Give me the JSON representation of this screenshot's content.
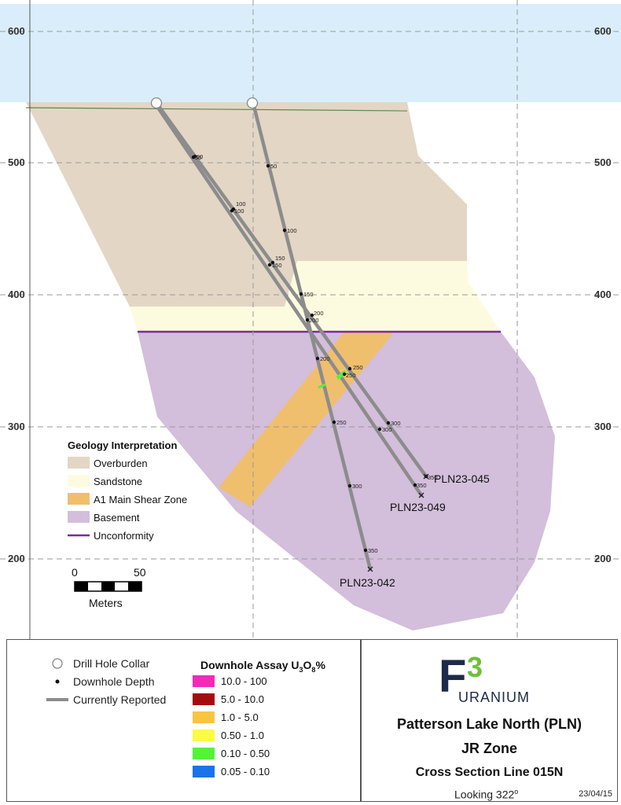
{
  "axis": {
    "left_ticks": [
      "600",
      "500",
      "400",
      "300",
      "200"
    ],
    "right_ticks": [
      "600",
      "500",
      "400",
      "300",
      "200"
    ]
  },
  "holes": [
    {
      "id": "PLN23-045",
      "depths": [
        "50",
        "100",
        "150",
        "200",
        "250",
        "300",
        "350"
      ]
    },
    {
      "id": "PLN23-049",
      "depths": [
        "50",
        "100",
        "150",
        "200",
        "250",
        "300",
        "350"
      ]
    },
    {
      "id": "PLN23-042",
      "depths": [
        "50",
        "100",
        "150",
        "200",
        "250",
        "300",
        "350"
      ]
    }
  ],
  "geology_legend": {
    "title": "Geology Interpretation",
    "items": [
      {
        "label": "Overburden",
        "color": "#e3d6c5"
      },
      {
        "label": "Sandstone",
        "color": "#fdfbdf"
      },
      {
        "label": "A1 Main Shear Zone",
        "color": "#efbf6e"
      },
      {
        "label": "Basement",
        "color": "#d3bedb"
      },
      {
        "label": "Unconformity",
        "color": "#7a2b9c"
      }
    ]
  },
  "scale_bar": {
    "start": "0",
    "end": "50",
    "unit": "Meters"
  },
  "symbol_legend": {
    "collar": "Drill Hole Collar",
    "depth": "Downhole Depth",
    "reported": "Currently Reported"
  },
  "assay_legend": {
    "title_prefix": "Downhole Assay U",
    "sub3": "3",
    "o": "O",
    "sub8": "8",
    "suffix": "%",
    "ranges": [
      {
        "label": "10.0 - 100",
        "color": "#f22ab8"
      },
      {
        "label": "5.0 - 10.0",
        "color": "#a40d0d"
      },
      {
        "label": "1.0 - 5.0",
        "color": "#f9c440"
      },
      {
        "label": "0.50 - 1.0",
        "color": "#fbfb45"
      },
      {
        "label": "0.10 - 0.50",
        "color": "#55f23a"
      },
      {
        "label": "0.05 - 0.10",
        "color": "#1a73e8"
      }
    ]
  },
  "title_block": {
    "logo_letters": "F",
    "logo_num": "3",
    "brand": "URANIUM",
    "line1": "Patterson Lake North (PLN)",
    "line2": "JR Zone",
    "line3": "Cross Section Line 015N",
    "looking": "Looking 322",
    "looking_deg": "o",
    "date": "23/04/15"
  },
  "colors": {
    "sky": "#d9eefa",
    "brand_navy": "#1e2a4a",
    "brand_green": "#6fbf3a"
  }
}
